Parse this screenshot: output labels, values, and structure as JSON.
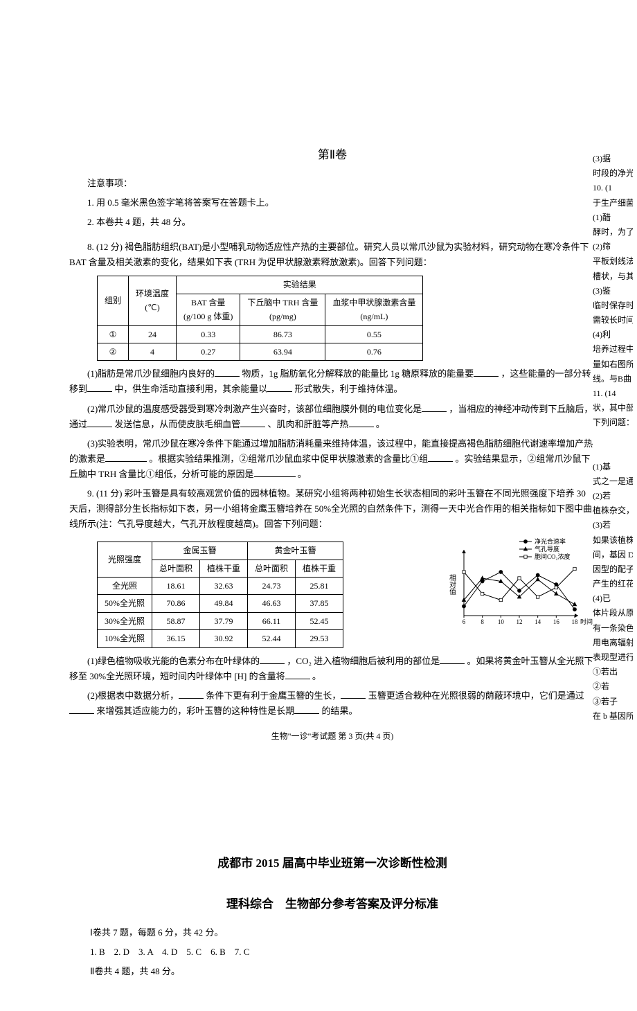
{
  "section2": {
    "title": "第Ⅱ卷",
    "notice_label": "注意事项：",
    "notice_1": "1. 用 0.5 毫米黑色签字笔将答案写在答题卡上。",
    "notice_2": "2. 本卷共 4 题，共 48 分。"
  },
  "q8": {
    "stem": "8. (12 分) 褐色脂肪组织(BAT)是小型哺乳动物适应性产热的主要部位。研究人员以常爪沙鼠为实验材料，研究动物在寒冷条件下 BAT 含量及相关激素的变化，结果如下表 (TRH 为促甲状腺激素释放激素)。回答下列问题：",
    "table": {
      "h_group": "组别",
      "h_temp": "环境温度\n(℃)",
      "h_result": "实验结果",
      "h_bat": "BAT 含量\n(g/100 g 体重)",
      "h_trh": "下丘脑中 TRH 含量\n(pg/mg)",
      "h_thy": "血浆中甲状腺激素含量\n(ng/mL)",
      "r1": {
        "g": "①",
        "t": "24",
        "bat": "0.33",
        "trh": "86.73",
        "thy": "0.55"
      },
      "r2": {
        "g": "②",
        "t": "4",
        "bat": "0.27",
        "trh": "63.94",
        "thy": "0.76"
      }
    },
    "p1a": "(1)脂肪是常爪沙鼠细胞内良好的",
    "p1b": "物质，1g 脂肪氧化分解释放的能量比 1g 糖原释放的能量要",
    "p1c": "，这些能量的一部分转移到",
    "p1d": "中，供生命活动直接利用，其余能量以",
    "p1e": "形式散失，利于维持体温。",
    "p2a": "(2)常爪沙鼠的温度感受器受到寒冷刺激产生兴奋时，该部位细胞膜外侧的电位变化是",
    "p2b": "，当相应的神经冲动传到下丘脑后，通过",
    "p2c": "发送信息，从而使皮肤毛细血管",
    "p2d": "、肌肉和肝脏等产热",
    "p2e": "。",
    "p3a": "(3)实验表明，常爪沙鼠在寒冷条件下能通过增加脂肪消耗量来维持体温，该过程中，能直接提高褐色脂肪细胞代谢速率增加产热的激素是",
    "p3b": "。根据实验结果推测，②组常爪沙鼠血浆中促甲状腺激素的含量比①组",
    "p3c": "。实验结果显示，②组常爪沙鼠下丘脑中 TRH 含量比①组低，分析可能的原因是",
    "p3d": "。"
  },
  "q9": {
    "stem": "9. (11 分) 彩叶玉簪是具有较高观赏价值的园林植物。某研究小组将两种初始生长状态相同的彩叶玉簪在不同光照强度下培养 30 天后，测得部分生长指标如下表，另一小组将金鹰玉簪培养在 50%全光照的自然条件下，测得一天中光合作用的相关指标如下图中曲线所示(注：气孔导度越大，气孔开放程度越高)。回答下列问题：",
    "table": {
      "h_light": "光照强度",
      "h_jin": "金属玉簪",
      "h_huang": "黄金叶玉簪",
      "h_leaf": "总叶面积",
      "h_dry": "植株干重",
      "rows": [
        {
          "l": "全光照",
          "a1": "18.61",
          "a2": "32.63",
          "b1": "24.73",
          "b2": "25.81"
        },
        {
          "l": "50%全光照",
          "a1": "70.86",
          "a2": "49.84",
          "b1": "46.63",
          "b2": "37.85"
        },
        {
          "l": "30%全光照",
          "a1": "58.87",
          "a2": "37.79",
          "b1": "66.11",
          "b2": "52.45"
        },
        {
          "l": "10%全光照",
          "a1": "36.15",
          "a2": "30.92",
          "b1": "52.44",
          "b2": "29.53"
        }
      ]
    },
    "chart": {
      "legend": [
        "净光合速率",
        "气孔导度",
        "胞间CO₂浓度"
      ],
      "x_label": "时间",
      "y_label": "相对值",
      "x_ticks": [
        "6",
        "8",
        "10",
        "12",
        "14",
        "16",
        "18"
      ],
      "colors": {
        "axis": "#000000",
        "line1": "#333333",
        "line2": "#333333",
        "line3": "#333333"
      },
      "series1": [
        15,
        55,
        70,
        40,
        65,
        50,
        10
      ],
      "series2": [
        25,
        60,
        55,
        30,
        58,
        35,
        18
      ],
      "series3": [
        70,
        35,
        25,
        60,
        30,
        45,
        75
      ]
    },
    "p1a": "(1)绿色植物吸收光能的色素分布在叶绿体的",
    "p1b": "，CO₂ 进入植物细胞后被利用的部位是",
    "p1c": "。如果将黄金叶玉簪从全光照下移至 30%全光照环境，短时间内叶绿体中 [H] 的含量将",
    "p1d": "。",
    "p2a": "(2)根据表中数据分析，",
    "p2b": "条件下更有利于金鹰玉簪的生长，",
    "p2c": "玉簪更适合栽种在光照很弱的荫蔽环境中，它们是通过",
    "p2d": "来增强其适应能力的，彩叶玉簪的这种特性是长期",
    "p2e": "的结果。"
  },
  "footer": "生物\"一诊\"考试题 第 3 页(共 4 页)",
  "page2": {
    "title": "成都市 2015 届高中毕业班第一次诊断性检测",
    "subtitle": "理科综合　生物部分参考答案及评分标准",
    "line1": "Ⅰ卷共 7 题，每题 6 分，共 42 分。",
    "line2": "1. B　2. D　3. A　4. D　5. C　6. B　7. C",
    "line3": "Ⅱ卷共 4 题，共 48 分。"
  },
  "side": {
    "s1": "(3)据",
    "s2": "时段的净光",
    "s3": "10. (1",
    "s4": "于生产细菌",
    "s5": "(1)醋",
    "s6": "酵时，为了",
    "s7": "(2)筛",
    "s8": "平板划线法",
    "s9": "槽状，与其他",
    "s10": "(3)鉴",
    "s11": "临时保存时",
    "s12": "需较长时间",
    "s13": "(4)利",
    "s14": "培养过程中",
    "s15": "量如右图所",
    "s16": "线。与B曲",
    "s17": "11. (14",
    "s18": "状，其中部",
    "s19": "下列问题：",
    "s20": "(1)基",
    "s21": "式之一是通",
    "s22": "(2)若",
    "s23": "植株杂交，",
    "s24": "(3)若",
    "s25": "如果该植株",
    "s26": "间，基因 D",
    "s27": "因型的配子",
    "s28": "产生的红花",
    "s29": "(4)已",
    "s30": "体片段从原",
    "s31": "有一条染色",
    "s32": "用电离辐射",
    "s33": "表现型进行",
    "s34": "①若出",
    "s35": "②若",
    "s36": "③若子",
    "s37": "在 b 基因所"
  }
}
